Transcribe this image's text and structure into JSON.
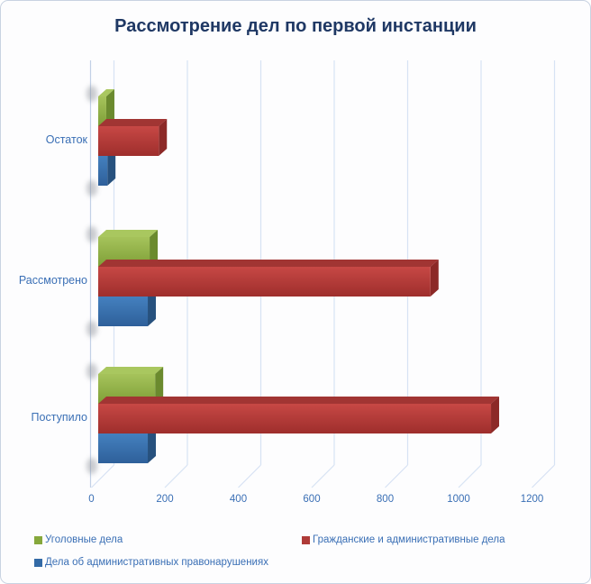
{
  "frame": {
    "background": "#fdfdfe",
    "border_color": "#c9d3e2"
  },
  "title": {
    "text": "Рассмотрение дел по первой инстанции",
    "color": "#1f3864"
  },
  "text_color": "#3a6fb5",
  "grid_color": "#d7e3f4",
  "axis_line_color": "#c2d0e6",
  "chart_data": {
    "type": "bar",
    "orientation": "horizontal",
    "style": "3d",
    "title": "Рассмотрение дел по первой инстанции",
    "categories": [
      "Остаток",
      "Рассмотрено",
      "Поступило"
    ],
    "series": [
      {
        "name": "Уголовные дела",
        "color": "#86a83c",
        "front": [
          "#a6c35b",
          "#7e9f37"
        ],
        "top": "#a9c75f",
        "side": "#6b8a2e",
        "values": [
          22,
          140,
          155
        ]
      },
      {
        "name": "Гражданские и административные дела",
        "color": "#af3b38",
        "front": [
          "#c74845",
          "#9e2e2c"
        ],
        "top": "#a13533",
        "side": "#8c2927",
        "values": [
          165,
          905,
          1070
        ]
      },
      {
        "name": "Дела об административных правонарушениях",
        "color": "#336aa6",
        "front": [
          "#4480bf",
          "#2e609a"
        ],
        "top": "#4e8ac4",
        "side": "#27517e",
        "values": [
          25,
          135,
          135
        ]
      }
    ],
    "x_ticks": [
      "0",
      "200",
      "400",
      "600",
      "800",
      "1000",
      "1200"
    ],
    "xlim": [
      0,
      1200
    ],
    "grid": true,
    "legend_position": "bottom"
  }
}
